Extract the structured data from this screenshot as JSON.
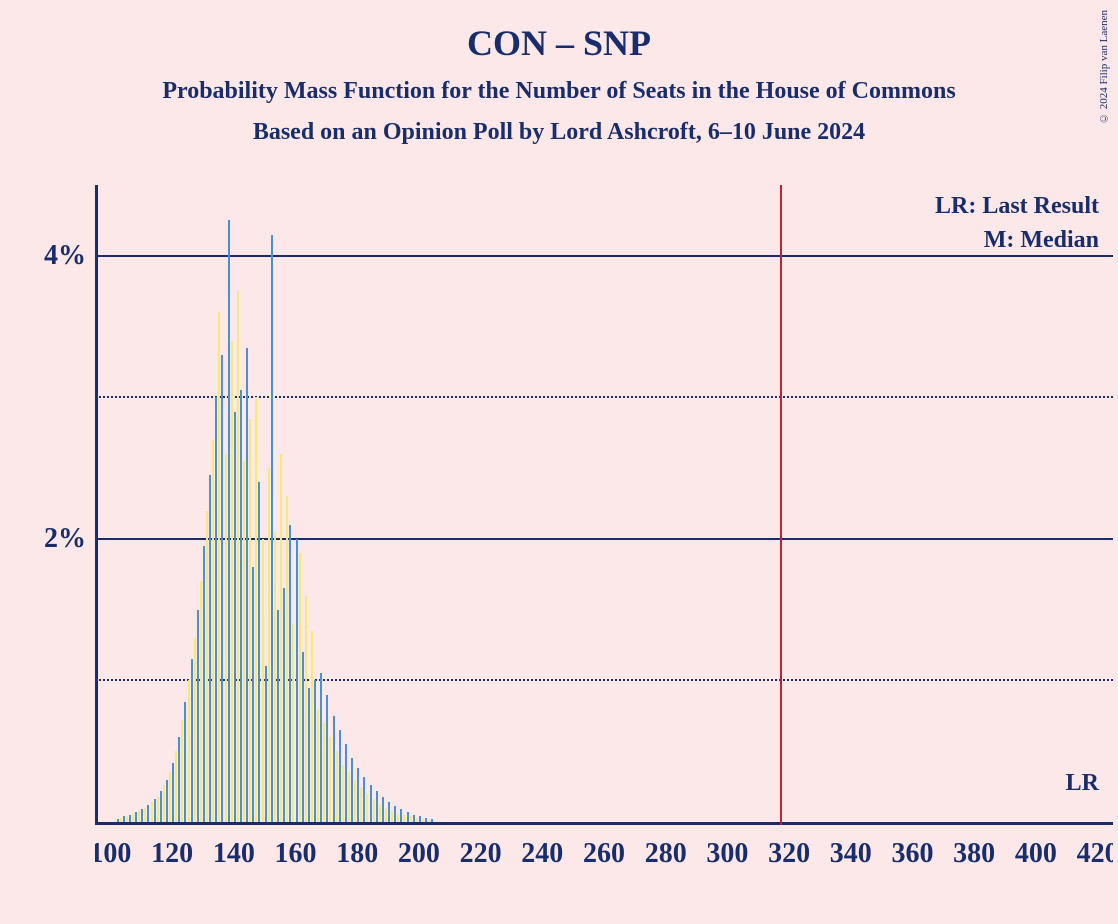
{
  "copyright": "© 2024 Filip van Laenen",
  "title": "CON – SNP",
  "subtitle": "Probability Mass Function for the Number of Seats in the House of Commons",
  "subtitle2": "Based on an Opinion Poll by Lord Ashcroft, 6–10 June 2024",
  "legend": {
    "lr": "LR: Last Result",
    "m": "M: Median",
    "lr_short": "LR"
  },
  "chart": {
    "type": "bar-pmf",
    "background_color": "#fce8e8",
    "text_color": "#1a2d6b",
    "axis_color": "#1a2d6b",
    "grid_solid_color": "#1a2d6b",
    "grid_dotted_color": "#1a2d6b",
    "lr_line_color": "#c41e3a",
    "bar_color_a": "#4a90d9",
    "bar_color_b": "#f5e979",
    "x_min": 95,
    "x_max": 425,
    "x_tick_start": 100,
    "x_tick_step": 20,
    "x_ticks": [
      "100",
      "120",
      "140",
      "160",
      "180",
      "200",
      "220",
      "240",
      "260",
      "280",
      "300",
      "320",
      "340",
      "360",
      "380",
      "400",
      "420"
    ],
    "y_max_pct": 4.5,
    "y_gridlines_solid": [
      2,
      4
    ],
    "y_gridlines_dotted": [
      1,
      3
    ],
    "y_ticks": [
      "2%",
      "4%"
    ],
    "lr_position": 317,
    "bars": [
      {
        "x": 102,
        "y": 0.02
      },
      {
        "x": 103,
        "y": 0.03
      },
      {
        "x": 104,
        "y": 0.04
      },
      {
        "x": 105,
        "y": 0.04
      },
      {
        "x": 106,
        "y": 0.05
      },
      {
        "x": 107,
        "y": 0.06
      },
      {
        "x": 108,
        "y": 0.07
      },
      {
        "x": 109,
        "y": 0.08
      },
      {
        "x": 110,
        "y": 0.09
      },
      {
        "x": 111,
        "y": 0.1
      },
      {
        "x": 112,
        "y": 0.12
      },
      {
        "x": 113,
        "y": 0.14
      },
      {
        "x": 114,
        "y": 0.16
      },
      {
        "x": 115,
        "y": 0.18
      },
      {
        "x": 116,
        "y": 0.22
      },
      {
        "x": 117,
        "y": 0.26
      },
      {
        "x": 118,
        "y": 0.3
      },
      {
        "x": 119,
        "y": 0.35
      },
      {
        "x": 120,
        "y": 0.42
      },
      {
        "x": 121,
        "y": 0.5
      },
      {
        "x": 122,
        "y": 0.6
      },
      {
        "x": 123,
        "y": 0.72
      },
      {
        "x": 124,
        "y": 0.85
      },
      {
        "x": 125,
        "y": 1.0
      },
      {
        "x": 126,
        "y": 1.15
      },
      {
        "x": 127,
        "y": 1.3
      },
      {
        "x": 128,
        "y": 1.5
      },
      {
        "x": 129,
        "y": 1.7
      },
      {
        "x": 130,
        "y": 1.95
      },
      {
        "x": 131,
        "y": 2.2
      },
      {
        "x": 132,
        "y": 2.45
      },
      {
        "x": 133,
        "y": 2.7
      },
      {
        "x": 134,
        "y": 3.0
      },
      {
        "x": 135,
        "y": 3.6
      },
      {
        "x": 136,
        "y": 3.3
      },
      {
        "x": 137,
        "y": 2.6
      },
      {
        "x": 138,
        "y": 4.25
      },
      {
        "x": 139,
        "y": 3.4
      },
      {
        "x": 140,
        "y": 2.9
      },
      {
        "x": 141,
        "y": 3.75
      },
      {
        "x": 142,
        "y": 3.05
      },
      {
        "x": 143,
        "y": 2.55
      },
      {
        "x": 144,
        "y": 3.35
      },
      {
        "x": 145,
        "y": 2.85
      },
      {
        "x": 146,
        "y": 1.8
      },
      {
        "x": 147,
        "y": 3.0
      },
      {
        "x": 148,
        "y": 2.4
      },
      {
        "x": 149,
        "y": 2.0
      },
      {
        "x": 150,
        "y": 1.1
      },
      {
        "x": 151,
        "y": 2.5
      },
      {
        "x": 152,
        "y": 4.15
      },
      {
        "x": 153,
        "y": 2.05
      },
      {
        "x": 154,
        "y": 1.5
      },
      {
        "x": 155,
        "y": 2.6
      },
      {
        "x": 156,
        "y": 1.65
      },
      {
        "x": 157,
        "y": 2.3
      },
      {
        "x": 158,
        "y": 2.1
      },
      {
        "x": 159,
        "y": 1.4
      },
      {
        "x": 160,
        "y": 2.0
      },
      {
        "x": 161,
        "y": 1.9
      },
      {
        "x": 162,
        "y": 1.2
      },
      {
        "x": 163,
        "y": 1.6
      },
      {
        "x": 164,
        "y": 0.95
      },
      {
        "x": 165,
        "y": 1.35
      },
      {
        "x": 166,
        "y": 1.0
      },
      {
        "x": 167,
        "y": 0.8
      },
      {
        "x": 168,
        "y": 1.05
      },
      {
        "x": 169,
        "y": 0.7
      },
      {
        "x": 170,
        "y": 0.9
      },
      {
        "x": 171,
        "y": 0.6
      },
      {
        "x": 172,
        "y": 0.75
      },
      {
        "x": 173,
        "y": 0.5
      },
      {
        "x": 174,
        "y": 0.65
      },
      {
        "x": 175,
        "y": 0.4
      },
      {
        "x": 176,
        "y": 0.55
      },
      {
        "x": 177,
        "y": 0.35
      },
      {
        "x": 178,
        "y": 0.45
      },
      {
        "x": 179,
        "y": 0.3
      },
      {
        "x": 180,
        "y": 0.38
      },
      {
        "x": 181,
        "y": 0.25
      },
      {
        "x": 182,
        "y": 0.32
      },
      {
        "x": 183,
        "y": 0.2
      },
      {
        "x": 184,
        "y": 0.26
      },
      {
        "x": 185,
        "y": 0.16
      },
      {
        "x": 186,
        "y": 0.22
      },
      {
        "x": 187,
        "y": 0.13
      },
      {
        "x": 188,
        "y": 0.18
      },
      {
        "x": 189,
        "y": 0.1
      },
      {
        "x": 190,
        "y": 0.14
      },
      {
        "x": 191,
        "y": 0.08
      },
      {
        "x": 192,
        "y": 0.11
      },
      {
        "x": 193,
        "y": 0.06
      },
      {
        "x": 194,
        "y": 0.09
      },
      {
        "x": 195,
        "y": 0.05
      },
      {
        "x": 196,
        "y": 0.07
      },
      {
        "x": 197,
        "y": 0.04
      },
      {
        "x": 198,
        "y": 0.05
      },
      {
        "x": 199,
        "y": 0.03
      },
      {
        "x": 200,
        "y": 0.04
      },
      {
        "x": 201,
        "y": 0.02
      },
      {
        "x": 202,
        "y": 0.03
      },
      {
        "x": 203,
        "y": 0.02
      },
      {
        "x": 204,
        "y": 0.02
      }
    ]
  }
}
